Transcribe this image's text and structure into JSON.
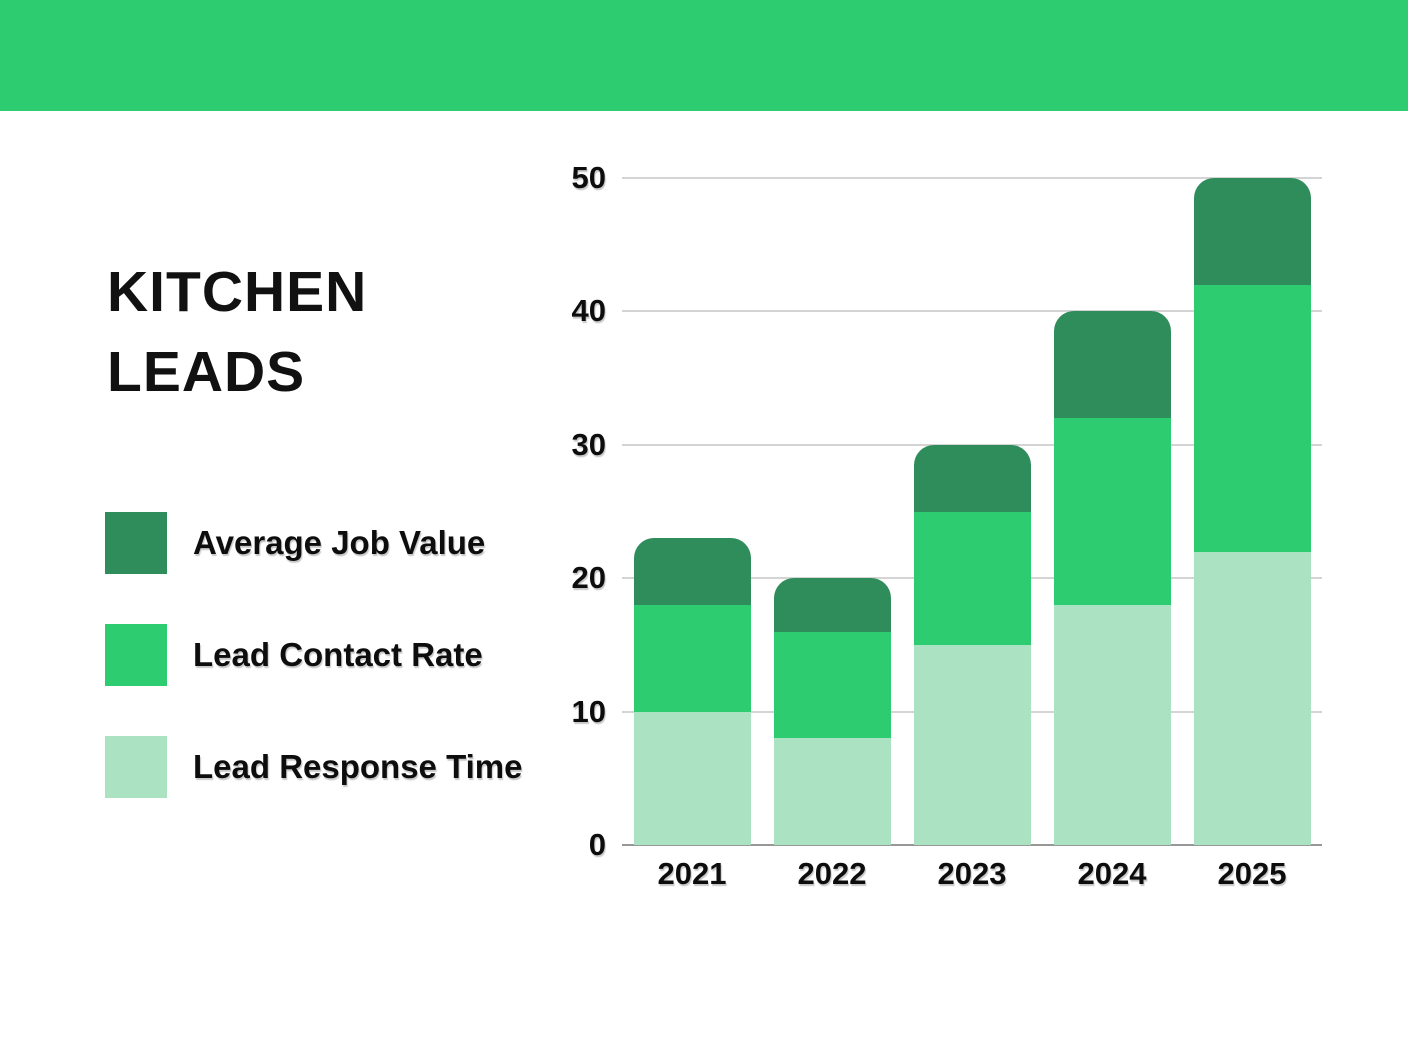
{
  "banner": {
    "color": "#2ECC71"
  },
  "title": {
    "line1": "KITCHEN",
    "line2": "LEADS"
  },
  "chart_data": {
    "type": "bar",
    "stacked": true,
    "title": "KITCHEN LEADS",
    "categories": [
      "2021",
      "2022",
      "2023",
      "2024",
      "2025"
    ],
    "series": [
      {
        "name": "Average Job Value",
        "color": "#2F8D5B",
        "values": [
          5,
          4,
          5,
          8,
          8
        ]
      },
      {
        "name": "Lead Contact Rate",
        "color": "#2ECC71",
        "values": [
          8,
          8,
          10,
          14,
          20
        ]
      },
      {
        "name": "Lead Response Time",
        "color": "#ABE2C2",
        "values": [
          10,
          8,
          15,
          18,
          22
        ]
      }
    ],
    "stack_order_bottom_to_top": [
      "Lead Response Time",
      "Lead Contact Rate",
      "Average Job Value"
    ],
    "totals": [
      23,
      20,
      30,
      40,
      50
    ],
    "yticks": [
      0,
      10,
      20,
      30,
      40,
      50
    ],
    "ylim": [
      0,
      50
    ],
    "xlabel": "",
    "ylabel": "",
    "grid": true,
    "legend_position": "left",
    "gridline_color": "#d4d4d4",
    "baseline_color": "#989898"
  }
}
